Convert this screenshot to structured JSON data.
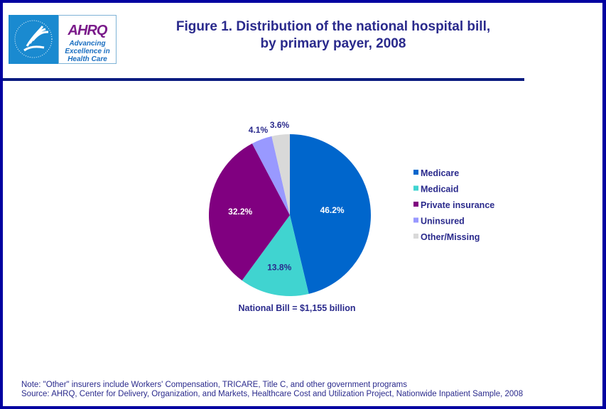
{
  "header": {
    "title_line1": "Figure 1. Distribution of the national hospital bill,",
    "title_line2": "by primary payer, 2008",
    "logo_ahrq": "AHRQ",
    "logo_tagline": "Advancing Excellence in Health Care",
    "logo_hhs": "Department of Health & Human Services USA"
  },
  "chart_data": {
    "type": "pie",
    "categories": [
      "Medicare",
      "Medicaid",
      "Private insurance",
      "Uninsured",
      "Other/Missing"
    ],
    "values": [
      46.2,
      13.8,
      32.2,
      4.1,
      3.6
    ],
    "labels": [
      "46.2%",
      "13.8%",
      "32.2%",
      "4.1%",
      "3.6%"
    ],
    "colors": [
      "#0066cc",
      "#40d4d0",
      "#800080",
      "#9999ff",
      "#d9d9d9"
    ],
    "label_colors": [
      "#ffffff",
      "#2a2a8c",
      "#ffffff",
      "#2a2a8c",
      "#2a2a8c"
    ],
    "start_angle_deg": 0,
    "direction": "clockwise",
    "legend_placement": "right",
    "annotation": "National Bill = $1,155 billion"
  },
  "footer": {
    "note": "Note: \"Other\" insurers include Workers' Compensation, TRICARE, Title C, and other government programs",
    "source": "Source: AHRQ,  Center for Delivery, Organization, and Markets, Healthcare Cost and Utilization Project, Nationwide Inpatient Sample, 2008"
  }
}
